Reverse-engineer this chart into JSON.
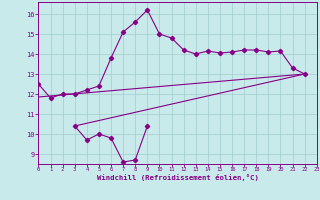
{
  "xlabel": "Windchill (Refroidissement éolien,°C)",
  "upper_x": [
    0,
    1,
    2,
    3,
    4,
    5,
    6,
    7,
    8,
    9,
    10,
    11,
    12,
    13,
    14,
    15,
    16,
    17,
    18,
    19,
    20,
    21,
    22
  ],
  "upper_y": [
    12.5,
    11.8,
    12.0,
    12.0,
    12.2,
    12.4,
    13.8,
    15.1,
    15.6,
    16.2,
    15.0,
    14.8,
    14.2,
    14.0,
    14.15,
    14.05,
    14.1,
    14.2,
    14.2,
    14.1,
    14.15,
    13.3,
    13.0
  ],
  "lower_x": [
    3,
    4,
    5,
    6,
    7,
    8,
    9
  ],
  "lower_y": [
    10.4,
    9.7,
    10.0,
    9.8,
    8.6,
    8.7,
    10.4
  ],
  "trend1_x": [
    0,
    22
  ],
  "trend1_y": [
    11.85,
    13.0
  ],
  "trend2_x": [
    3,
    22
  ],
  "trend2_y": [
    10.4,
    13.0
  ],
  "line_color": "#880088",
  "bg_color": "#c8eaea",
  "grid_color": "#a0cccc",
  "ylim": [
    8.5,
    16.6
  ],
  "xlim": [
    0,
    23
  ],
  "yticks": [
    9,
    10,
    11,
    12,
    13,
    14,
    15,
    16
  ],
  "xticks": [
    0,
    1,
    2,
    3,
    4,
    5,
    6,
    7,
    8,
    9,
    10,
    11,
    12,
    13,
    14,
    15,
    16,
    17,
    18,
    19,
    20,
    21,
    22,
    23
  ]
}
